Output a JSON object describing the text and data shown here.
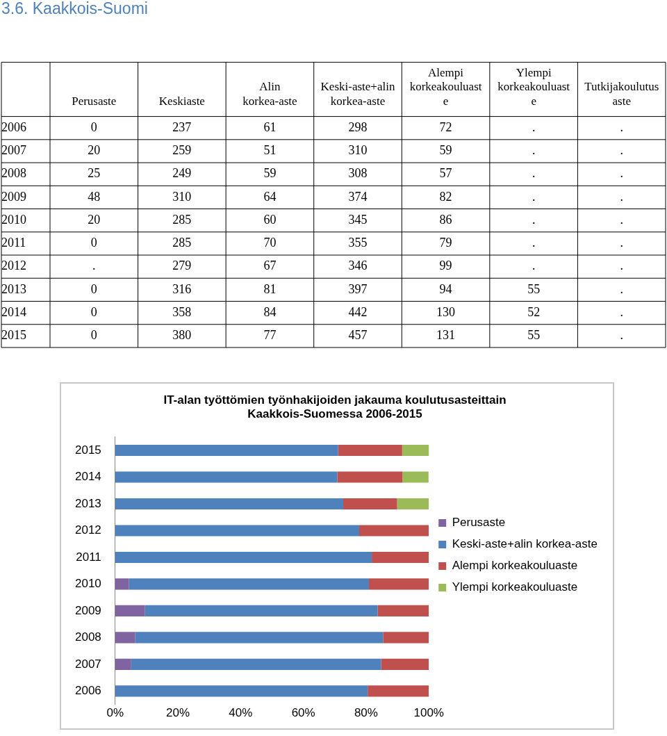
{
  "chart_data": [
    {
      "type": "heatmap",
      "title": "3.6. Kaakkois-Suomi",
      "categories": [
        "Perusaste",
        "Keskiaste",
        "Alin korkea-aste",
        "Keski-aste+alin korkea-aste",
        "Alempi korkeakouluaste",
        "Ylempi korkeakouluaste",
        "Tutkijakoulutusaste"
      ],
      "y_categories": [
        "2006",
        "2007",
        "2008",
        "2009",
        "2010",
        "2011",
        "2012",
        "2013",
        "2014",
        "2015"
      ],
      "cells": [
        [
          0,
          237,
          61,
          298,
          72,
          null,
          null
        ],
        [
          20,
          259,
          51,
          310,
          59,
          null,
          null
        ],
        [
          25,
          249,
          59,
          308,
          57,
          null,
          null
        ],
        [
          48,
          310,
          64,
          374,
          82,
          null,
          null
        ],
        [
          20,
          285,
          60,
          345,
          86,
          null,
          null
        ],
        [
          0,
          285,
          70,
          355,
          79,
          null,
          null
        ],
        [
          null,
          279,
          67,
          346,
          99,
          null,
          null
        ],
        [
          0,
          316,
          81,
          397,
          94,
          55,
          null
        ],
        [
          0,
          358,
          84,
          442,
          130,
          52,
          null
        ],
        [
          0,
          380,
          77,
          457,
          131,
          55,
          null
        ]
      ],
      "cell_labels": [
        [
          "0",
          "237",
          "61",
          "298",
          "72",
          ".",
          "."
        ],
        [
          "20",
          "259",
          "51",
          "310",
          "59",
          ".",
          "."
        ],
        [
          "25",
          "249",
          "59",
          "308",
          "57",
          ".",
          "."
        ],
        [
          "48",
          "310",
          "64",
          "374",
          "82",
          ".",
          "."
        ],
        [
          "20",
          "285",
          "60",
          "345",
          "86",
          ".",
          "."
        ],
        [
          "0",
          "285",
          "70",
          "355",
          "79",
          ".",
          "."
        ],
        [
          ".",
          "279",
          "67",
          "346",
          "99",
          ".",
          "."
        ],
        [
          "0",
          "316",
          "81",
          "397",
          "94",
          "55",
          "."
        ],
        [
          "0",
          "358",
          "84",
          "442",
          "130",
          "52",
          "."
        ],
        [
          "0",
          "380",
          "77",
          "457",
          "131",
          "55",
          "."
        ]
      ]
    },
    {
      "type": "bar",
      "orientation": "horizontal",
      "stacked": true,
      "title": "IT-alan työttömien työnhakijoiden jakauma koulutusasteittain Kaakkois-Suomessa 2006-2015",
      "categories": [
        "2015",
        "2014",
        "2013",
        "2012",
        "2011",
        "2010",
        "2009",
        "2008",
        "2007",
        "2006"
      ],
      "series": [
        {
          "name": "Perusaste",
          "color": "#8064a2",
          "values": [
            0,
            0,
            0,
            null,
            0,
            4.4,
            9.5,
            6.4,
            5.1,
            0
          ]
        },
        {
          "name": "Keski-aste+alin korkea-aste",
          "color": "#4f81bd",
          "values": [
            71.1,
            70.8,
            72.7,
            77.8,
            81.8,
            76.5,
            74.2,
            79.0,
            79.7,
            80.5
          ]
        },
        {
          "name": "Alempi korkeakouluaste",
          "color": "#c0504d",
          "values": [
            20.4,
            20.8,
            17.2,
            22.2,
            18.2,
            19.1,
            16.3,
            14.6,
            15.2,
            19.5
          ]
        },
        {
          "name": "Ylempi korkeakouluaste",
          "color": "#9bbb59",
          "values": [
            8.6,
            8.3,
            10.1,
            null,
            null,
            null,
            null,
            null,
            null,
            null
          ]
        }
      ],
      "xlim": [
        0,
        100
      ],
      "xticks": [
        {
          "value": 0,
          "label": "0%"
        },
        {
          "value": 20,
          "label": "20%"
        },
        {
          "value": 40,
          "label": "40%"
        },
        {
          "value": 60,
          "label": "60%"
        },
        {
          "value": 80,
          "label": "80%"
        },
        {
          "value": 100,
          "label": "100%"
        }
      ],
      "legend": "right",
      "grid": false
    }
  ]
}
